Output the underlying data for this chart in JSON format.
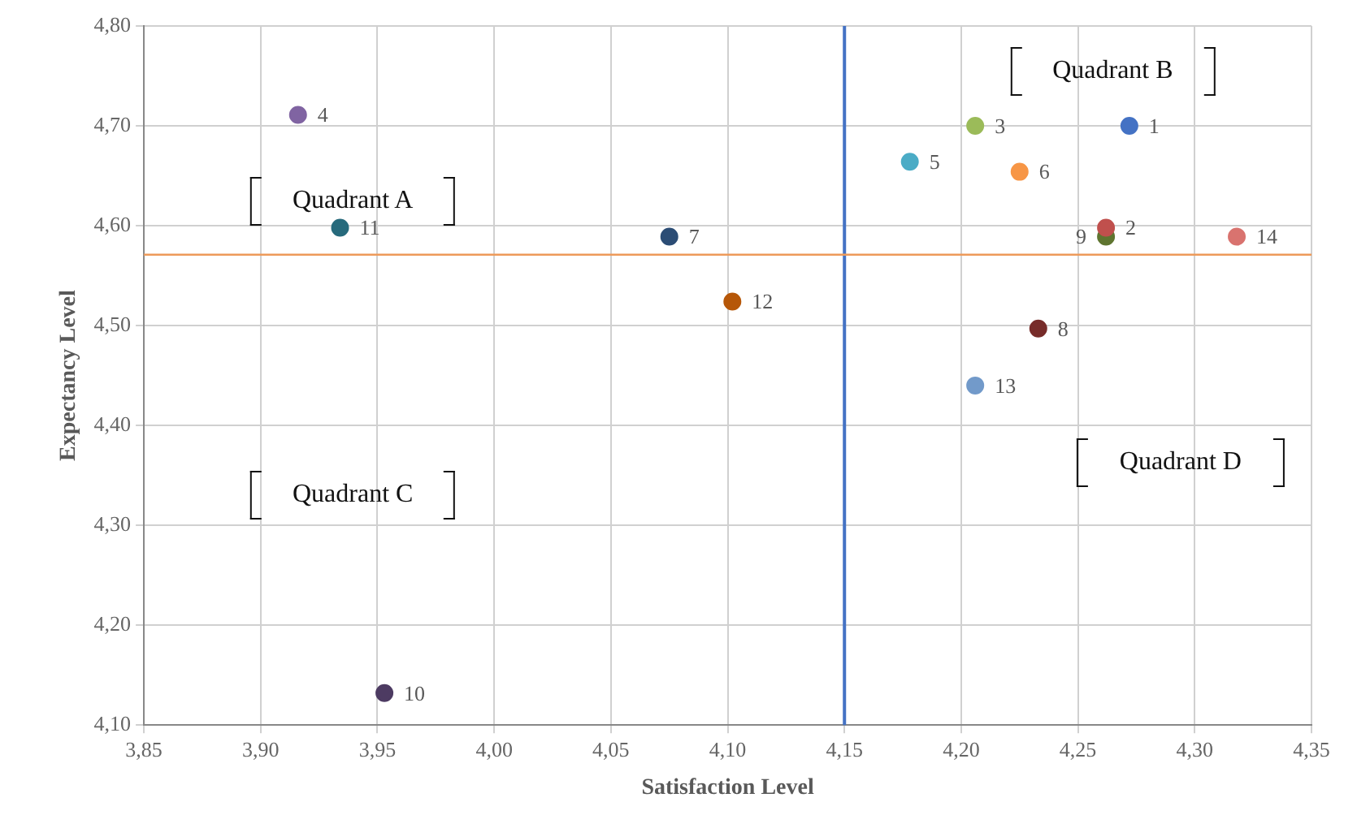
{
  "chart_data": {
    "type": "scatter",
    "xlabel": "Satisfaction Level",
    "ylabel": "Expectancy Level",
    "xlim": [
      3.85,
      4.35
    ],
    "ylim": [
      4.1,
      4.8
    ],
    "xticks": [
      {
        "value": 3.85,
        "label": "3,85"
      },
      {
        "value": 3.9,
        "label": "3,90"
      },
      {
        "value": 3.95,
        "label": "3,95"
      },
      {
        "value": 4.0,
        "label": "4,00"
      },
      {
        "value": 4.05,
        "label": "4,05"
      },
      {
        "value": 4.1,
        "label": "4,10"
      },
      {
        "value": 4.15,
        "label": "4,15"
      },
      {
        "value": 4.2,
        "label": "4,20"
      },
      {
        "value": 4.25,
        "label": "4,25"
      },
      {
        "value": 4.3,
        "label": "4,30"
      },
      {
        "value": 4.35,
        "label": "4,35"
      }
    ],
    "yticks": [
      {
        "value": 4.1,
        "label": "4,10"
      },
      {
        "value": 4.2,
        "label": "4,20"
      },
      {
        "value": 4.3,
        "label": "4,30"
      },
      {
        "value": 4.4,
        "label": "4,40"
      },
      {
        "value": 4.5,
        "label": "4,50"
      },
      {
        "value": 4.6,
        "label": "4,60"
      },
      {
        "value": 4.7,
        "label": "4,70"
      },
      {
        "value": 4.8,
        "label": "4,80"
      }
    ],
    "grid": true,
    "legend": false,
    "marker": "circle",
    "series": [
      {
        "name": "1",
        "color": "#4472c4",
        "x": [
          4.272
        ],
        "values": [
          4.7
        ]
      },
      {
        "name": "2",
        "color": "#c0504d",
        "x": [
          4.262
        ],
        "values": [
          4.598
        ]
      },
      {
        "name": "3",
        "color": "#9bbb59",
        "x": [
          4.206
        ],
        "values": [
          4.7
        ]
      },
      {
        "name": "4",
        "color": "#8064a2",
        "x": [
          3.916
        ],
        "values": [
          4.711
        ]
      },
      {
        "name": "5",
        "color": "#4bacc6",
        "x": [
          4.178
        ],
        "values": [
          4.664
        ]
      },
      {
        "name": "6",
        "color": "#f79646",
        "x": [
          4.225
        ],
        "values": [
          4.654
        ]
      },
      {
        "name": "7",
        "color": "#2c4d75",
        "x": [
          4.075
        ],
        "values": [
          4.589
        ]
      },
      {
        "name": "8",
        "color": "#772c2a",
        "x": [
          4.233
        ],
        "values": [
          4.497
        ]
      },
      {
        "name": "9",
        "color": "#5f7530",
        "x": [
          4.262
        ],
        "values": [
          4.589
        ]
      },
      {
        "name": "10",
        "color": "#4d3b62",
        "x": [
          3.953
        ],
        "values": [
          4.132
        ]
      },
      {
        "name": "11",
        "color": "#276a7c",
        "x": [
          3.934
        ],
        "values": [
          4.598
        ]
      },
      {
        "name": "12",
        "color": "#b65708",
        "x": [
          4.102
        ],
        "values": [
          4.524
        ]
      },
      {
        "name": "13",
        "color": "#729aca",
        "x": [
          4.206
        ],
        "values": [
          4.44
        ]
      },
      {
        "name": "14",
        "color": "#d9736f",
        "x": [
          4.318
        ],
        "values": [
          4.589
        ]
      }
    ],
    "ref_lines": [
      {
        "axis": "x",
        "value": 4.15,
        "color": "#4472c4"
      },
      {
        "axis": "y",
        "value": 4.571,
        "color": "#ed9a5a"
      }
    ],
    "annotations": [
      "Quadrant B",
      "Quadrant A",
      "Quadrant C",
      "Quadrant D"
    ]
  }
}
